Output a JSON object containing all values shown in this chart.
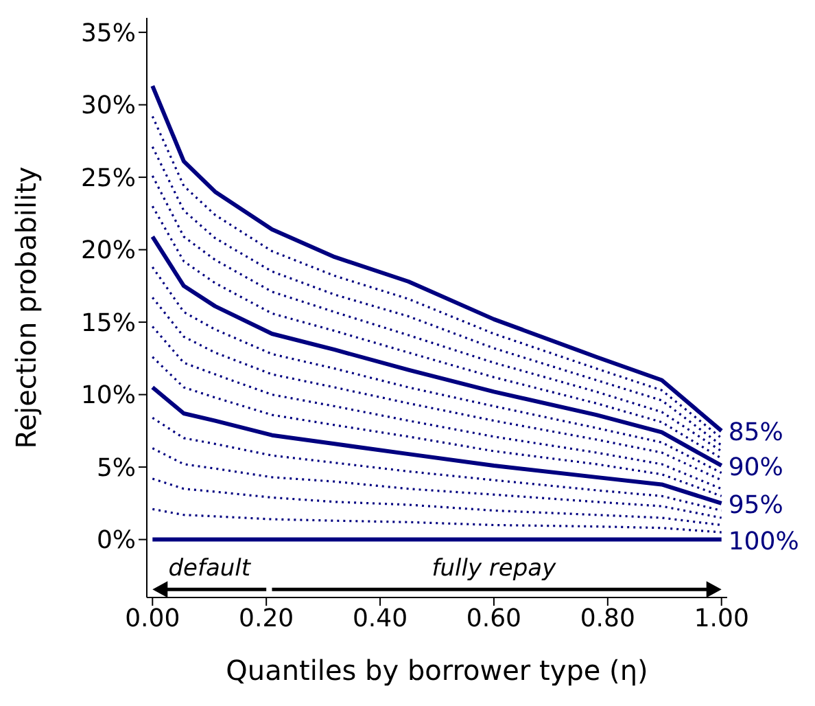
{
  "chart_data": {
    "type": "line",
    "xlabel": "Quantiles by borrower type (η)",
    "ylabel": "Rejection probability",
    "x": [
      0,
      0.055,
      0.11,
      0.21,
      0.32,
      0.45,
      0.6,
      0.78,
      0.895,
      1.0
    ],
    "xlim": [
      -0.01,
      1.01
    ],
    "ylim": [
      -4,
      36
    ],
    "xticks": [
      {
        "value": 0,
        "label": "0.00"
      },
      {
        "value": 0.2,
        "label": "0.20"
      },
      {
        "value": 0.4,
        "label": "0.40"
      },
      {
        "value": 0.6,
        "label": "0.60"
      },
      {
        "value": 0.8,
        "label": "0.80"
      },
      {
        "value": 1,
        "label": "1.00"
      }
    ],
    "yticks": [
      {
        "value": 0,
        "label": "0%"
      },
      {
        "value": 5,
        "label": "5%"
      },
      {
        "value": 10,
        "label": "10%"
      },
      {
        "value": 15,
        "label": "15%"
      },
      {
        "value": 20,
        "label": "20%"
      },
      {
        "value": 25,
        "label": "25%"
      },
      {
        "value": 30,
        "label": "30%"
      },
      {
        "value": 35,
        "label": "35%"
      }
    ],
    "series": [
      {
        "name": "85%",
        "color": "#000080",
        "line_style": "solid",
        "values": [
          31.3,
          26.1,
          24.0,
          21.4,
          19.5,
          17.8,
          15.2,
          12.6,
          11.0,
          7.5
        ]
      },
      {
        "color": "#000080",
        "line_style": "dotted",
        "values": [
          29.2,
          24.4,
          22.4,
          19.9,
          18.2,
          16.6,
          14.2,
          11.8,
          10.3,
          7.0
        ]
      },
      {
        "color": "#000080",
        "line_style": "dotted",
        "values": [
          27.1,
          22.7,
          20.8,
          18.5,
          16.9,
          15.4,
          13.2,
          11.0,
          9.6,
          6.5
        ]
      },
      {
        "color": "#000080",
        "line_style": "dotted",
        "values": [
          25.1,
          20.9,
          19.3,
          17.1,
          15.7,
          14.1,
          12.2,
          10.2,
          8.8,
          6.1
        ]
      },
      {
        "color": "#000080",
        "line_style": "dotted",
        "values": [
          23.0,
          19.2,
          17.7,
          15.6,
          14.4,
          12.9,
          11.2,
          9.4,
          8.1,
          5.6
        ]
      },
      {
        "name": "90%",
        "color": "#000080",
        "line_style": "solid",
        "values": [
          20.9,
          17.5,
          16.1,
          14.2,
          13.1,
          11.7,
          10.2,
          8.6,
          7.4,
          5.1
        ]
      },
      {
        "color": "#000080",
        "line_style": "dotted",
        "values": [
          18.8,
          15.7,
          14.5,
          12.8,
          11.8,
          10.5,
          9.2,
          7.7,
          6.7,
          4.6
        ]
      },
      {
        "color": "#000080",
        "line_style": "dotted",
        "values": [
          16.7,
          14.0,
          12.9,
          11.4,
          10.5,
          9.4,
          8.2,
          6.9,
          6.0,
          4.1
        ]
      },
      {
        "color": "#000080",
        "line_style": "dotted",
        "values": [
          14.7,
          12.2,
          11.4,
          10.0,
          9.2,
          8.2,
          7.1,
          6.0,
          5.2,
          3.5
        ]
      },
      {
        "color": "#000080",
        "line_style": "dotted",
        "values": [
          12.6,
          10.5,
          9.8,
          8.6,
          7.9,
          7.1,
          6.1,
          5.2,
          4.5,
          3.0
        ]
      },
      {
        "name": "95%",
        "color": "#000080",
        "line_style": "solid",
        "values": [
          10.5,
          8.7,
          8.2,
          7.2,
          6.6,
          5.9,
          5.1,
          4.3,
          3.8,
          2.5
        ]
      },
      {
        "color": "#000080",
        "line_style": "dotted",
        "values": [
          8.4,
          7.0,
          6.6,
          5.8,
          5.3,
          4.7,
          4.1,
          3.4,
          3.0,
          2.0
        ]
      },
      {
        "color": "#000080",
        "line_style": "dotted",
        "values": [
          6.3,
          5.2,
          4.9,
          4.3,
          4.0,
          3.5,
          3.1,
          2.6,
          2.3,
          1.5
        ]
      },
      {
        "color": "#000080",
        "line_style": "dotted",
        "values": [
          4.2,
          3.5,
          3.3,
          2.9,
          2.6,
          2.4,
          2.0,
          1.7,
          1.5,
          1.0
        ]
      },
      {
        "color": "#000080",
        "line_style": "dotted",
        "values": [
          2.1,
          1.7,
          1.6,
          1.4,
          1.3,
          1.2,
          1.0,
          0.9,
          0.8,
          0.5
        ]
      },
      {
        "name": "100%",
        "color": "#000080",
        "line_style": "solid",
        "values": [
          0,
          0,
          0,
          0,
          0,
          0,
          0,
          0,
          0,
          0
        ]
      }
    ],
    "annotations": [
      "default",
      "fully repay"
    ]
  }
}
